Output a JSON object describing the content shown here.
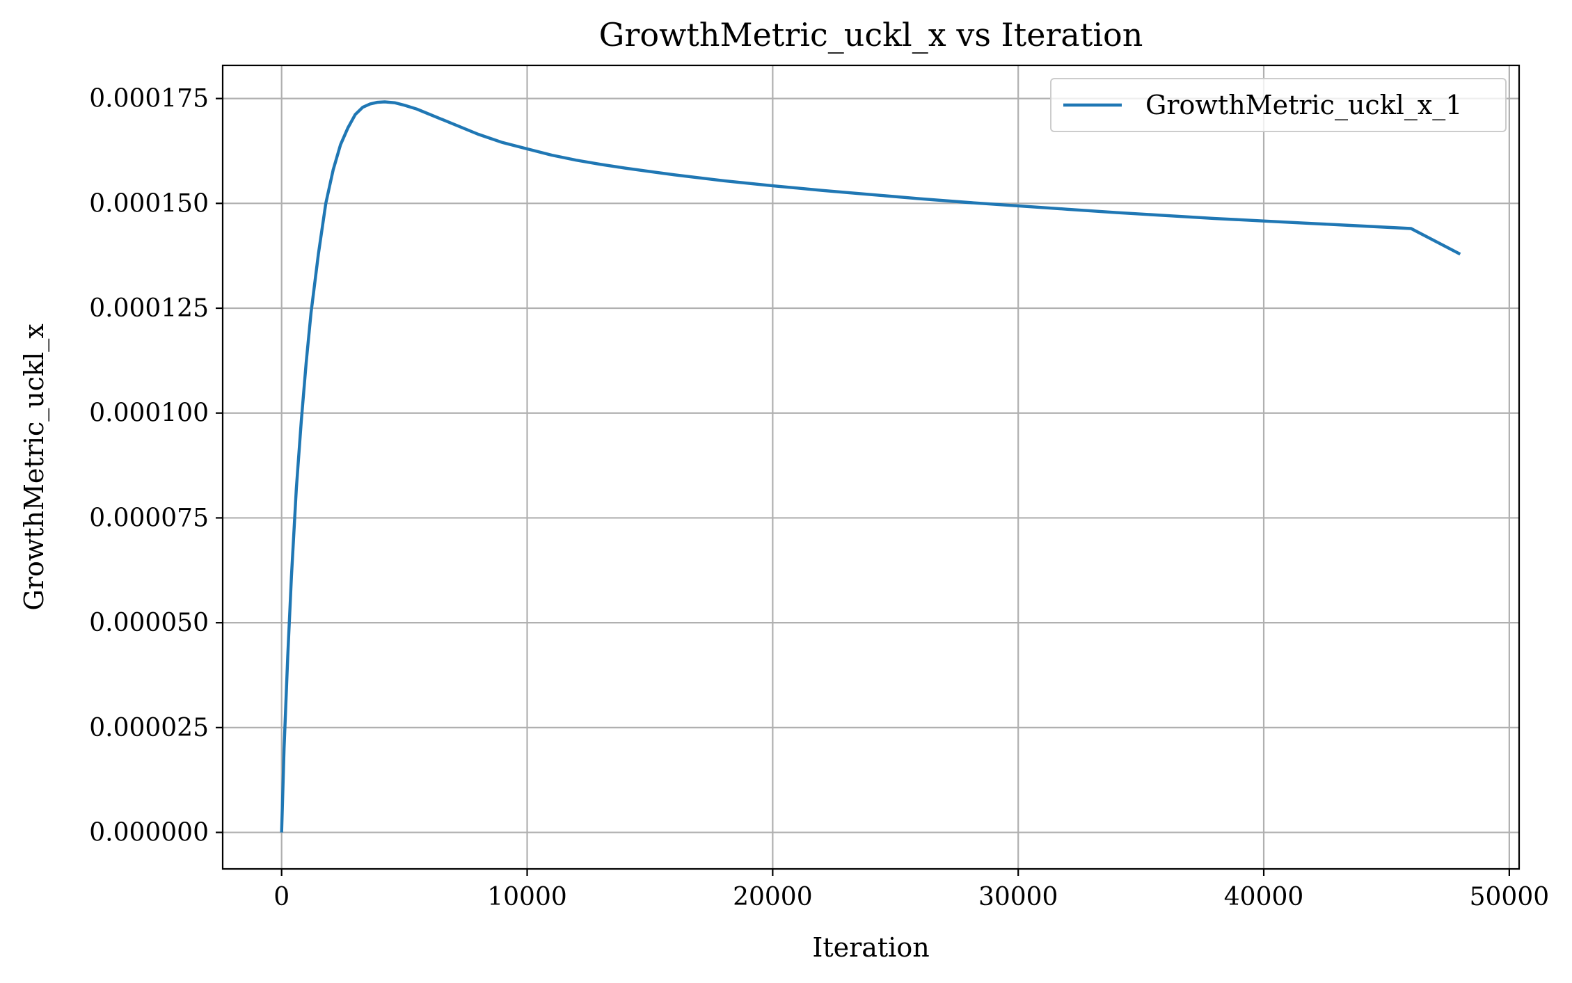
{
  "chart_data": {
    "type": "line",
    "title": "GrowthMetric_uckl_x vs Iteration",
    "xlabel": "Iteration",
    "ylabel": "GrowthMetric_uckl_x",
    "xlim": [
      -2400,
      50400
    ],
    "ylim": [
      -8.7e-06,
      0.0001829
    ],
    "x_ticks": [
      0,
      10000,
      20000,
      30000,
      40000,
      50000
    ],
    "x_tick_labels": [
      "0",
      "10000",
      "20000",
      "30000",
      "40000",
      "50000"
    ],
    "y_ticks": [
      0,
      2.5e-05,
      5e-05,
      7.5e-05,
      0.0001,
      0.000125,
      0.00015,
      0.000175
    ],
    "y_tick_labels": [
      "0.000000",
      "0.000025",
      "0.000050",
      "0.000075",
      "0.000100",
      "0.000125",
      "0.000150",
      "0.000175"
    ],
    "grid": true,
    "legend_position": "top-right",
    "series": [
      {
        "name": "GrowthMetric_uckl_x_1",
        "color": "#1f77b4",
        "x": [
          0,
          100,
          250,
          400,
          600,
          800,
          1000,
          1200,
          1500,
          1800,
          2100,
          2400,
          2700,
          3000,
          3300,
          3600,
          3900,
          4200,
          4600,
          5000,
          5500,
          6000,
          7000,
          8000,
          9000,
          10000,
          11000,
          12000,
          13000,
          14000,
          15000,
          16000,
          17000,
          18000,
          19000,
          20000,
          22000,
          24000,
          26000,
          28000,
          30000,
          32000,
          34000,
          36000,
          38000,
          40000,
          42000,
          44000,
          46000,
          48000
        ],
        "y": [
          0,
          2e-05,
          4.2e-05,
          6.1e-05,
          8.2e-05,
          9.8e-05,
          0.000112,
          0.000124,
          0.000138,
          0.00015,
          0.000158,
          0.000164,
          0.000168,
          0.0001712,
          0.0001729,
          0.0001737,
          0.0001741,
          0.0001742,
          0.000174,
          0.0001734,
          0.0001725,
          0.0001713,
          0.0001689,
          0.0001665,
          0.0001645,
          0.000163,
          0.0001615,
          0.0001603,
          0.0001593,
          0.0001584,
          0.0001576,
          0.0001568,
          0.0001561,
          0.0001554,
          0.0001548,
          0.0001542,
          0.0001531,
          0.0001521,
          0.0001511,
          0.0001502,
          0.0001494,
          0.0001486,
          0.0001478,
          0.0001471,
          0.0001464,
          0.0001458,
          0.0001452,
          0.0001446,
          0.000144,
          0.0001379
        ]
      }
    ]
  }
}
